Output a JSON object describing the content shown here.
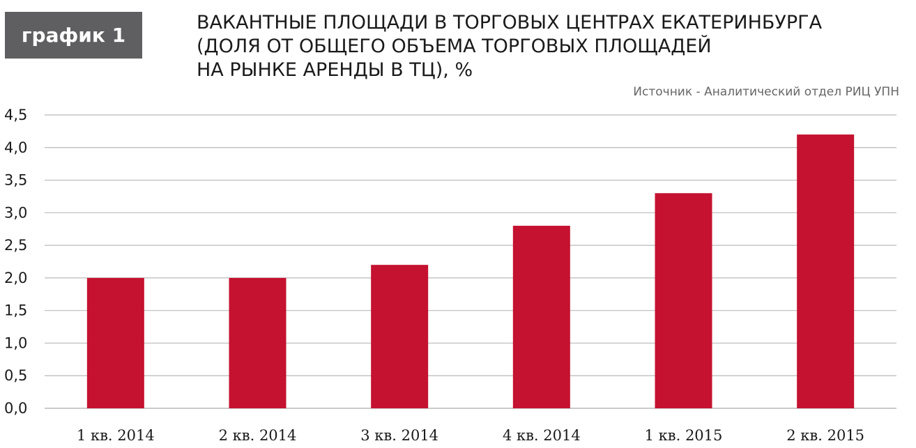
{
  "badge": "график 1",
  "title_lines": [
    "ВАКАНТНЫЕ ПЛОЩАДИ В ТОРГОВЫХ ЦЕНТРАХ ЕКАТЕРИНБУРГА",
    "(ДОЛЯ ОТ ОБЩЕГО ОБЪЕМА ТОРГОВЫХ ПЛОЩАДЕЙ",
    "НА РЫНКЕ АРЕНДЫ В ТЦ), %"
  ],
  "source": "Источник - Аналитический  отдел РИЦ УПН",
  "colors": {
    "bar": "#c41230",
    "grid": "#b9b9b9",
    "badge": "#5f5f61"
  },
  "chart_data": {
    "type": "bar",
    "title": "ВАКАНТНЫЕ ПЛОЩАДИ В ТОРГОВЫХ ЦЕНТРАХ ЕКАТЕРИНБУРГА (ДОЛЯ ОТ ОБЩЕГО ОБЪЕМА ТОРГОВЫХ ПЛОЩАДЕЙ НА РЫНКЕ АРЕНДЫ В ТЦ), %",
    "categories": [
      "1 кв. 2014",
      "2 кв. 2014",
      "3 кв. 2014",
      "4 кв. 2014",
      "1 кв. 2015",
      "2 кв. 2015"
    ],
    "values": [
      2.0,
      2.0,
      2.2,
      2.8,
      3.3,
      4.2
    ],
    "ylim": [
      0,
      4.5
    ],
    "yticks": [
      "0,0",
      "0,5",
      "1,0",
      "1,5",
      "2,0",
      "2,5",
      "3,0",
      "3,5",
      "4,0",
      "4,5"
    ],
    "grid": true,
    "legend": "none"
  }
}
